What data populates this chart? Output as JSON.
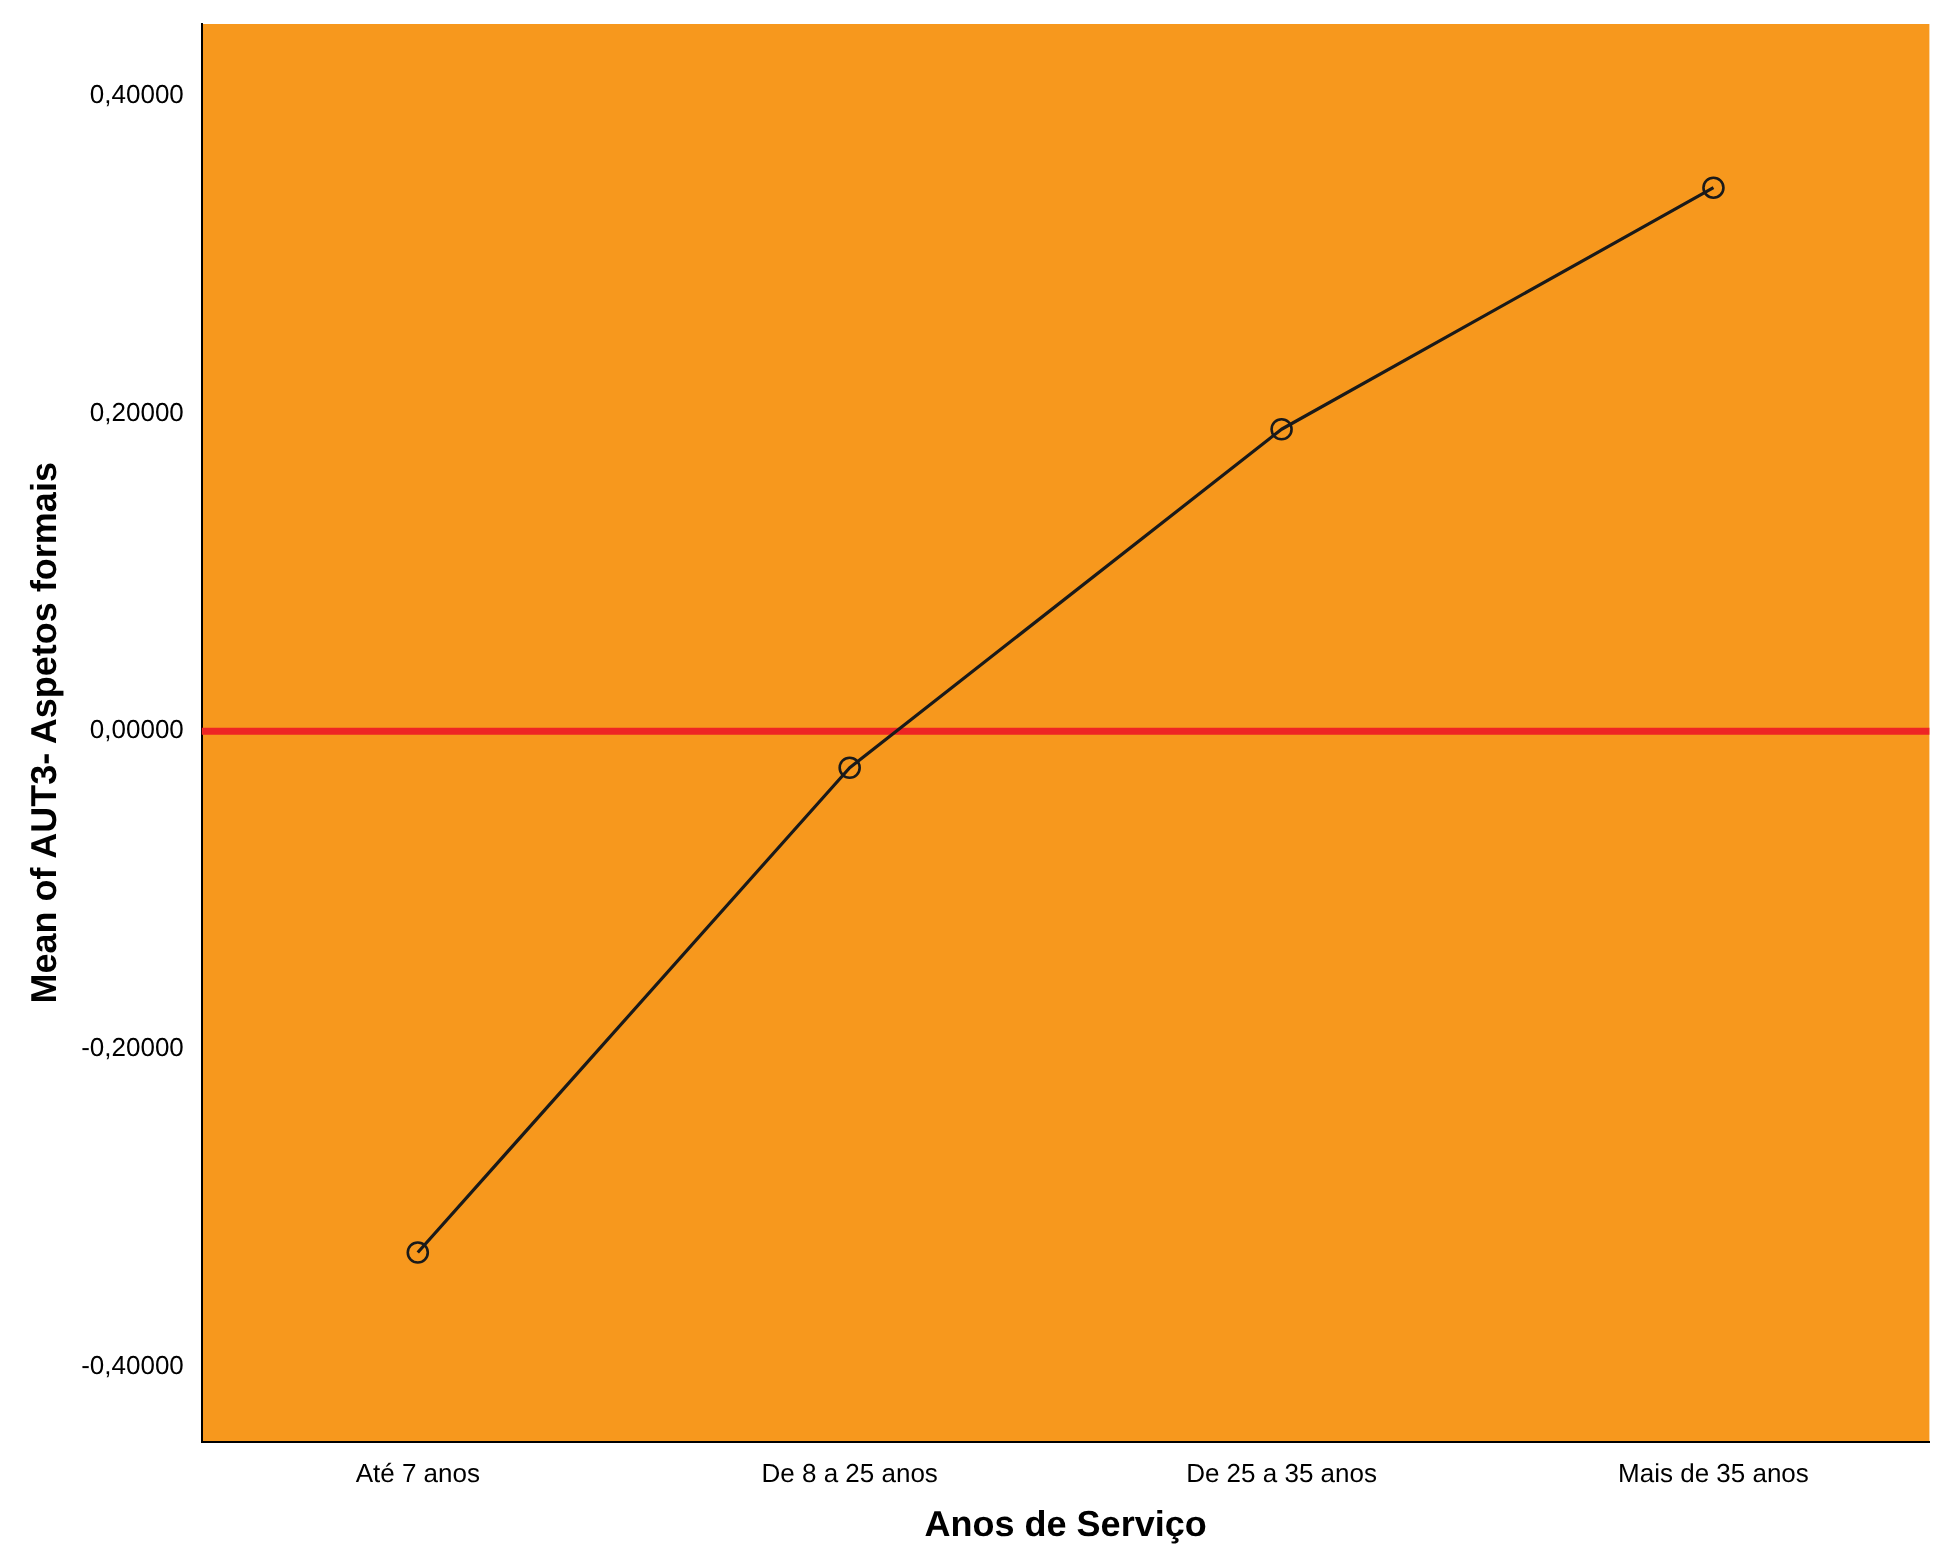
{
  "chart_data": {
    "type": "line",
    "xlabel": "Anos de Serviço",
    "ylabel": "Mean of AUT3- Aspetos formais",
    "categories": [
      "Até 7 anos",
      "De 8 a 25 anos",
      "De 25 a 35 anos",
      "Mais de 35 anos"
    ],
    "series": [
      {
        "color": "#1a1a1a",
        "values": [
          -0.328,
          -0.023,
          0.19,
          0.342
        ]
      }
    ],
    "ylim": [
      -0.447,
      0.445
    ],
    "yticks": [
      {
        "value": -0.4,
        "label": "-0,40000"
      },
      {
        "value": -0.2,
        "label": "-0,20000"
      },
      {
        "value": 0,
        "label": "0,00000"
      },
      {
        "value": 0.2,
        "label": "0,20000"
      },
      {
        "value": 0.4,
        "label": "0,40000"
      }
    ],
    "ref_lines": [
      {
        "axis": "y",
        "value": 0,
        "color": "#ee2524"
      }
    ],
    "grid": false,
    "legend": false,
    "marker": "circle",
    "line_style": "solid"
  }
}
